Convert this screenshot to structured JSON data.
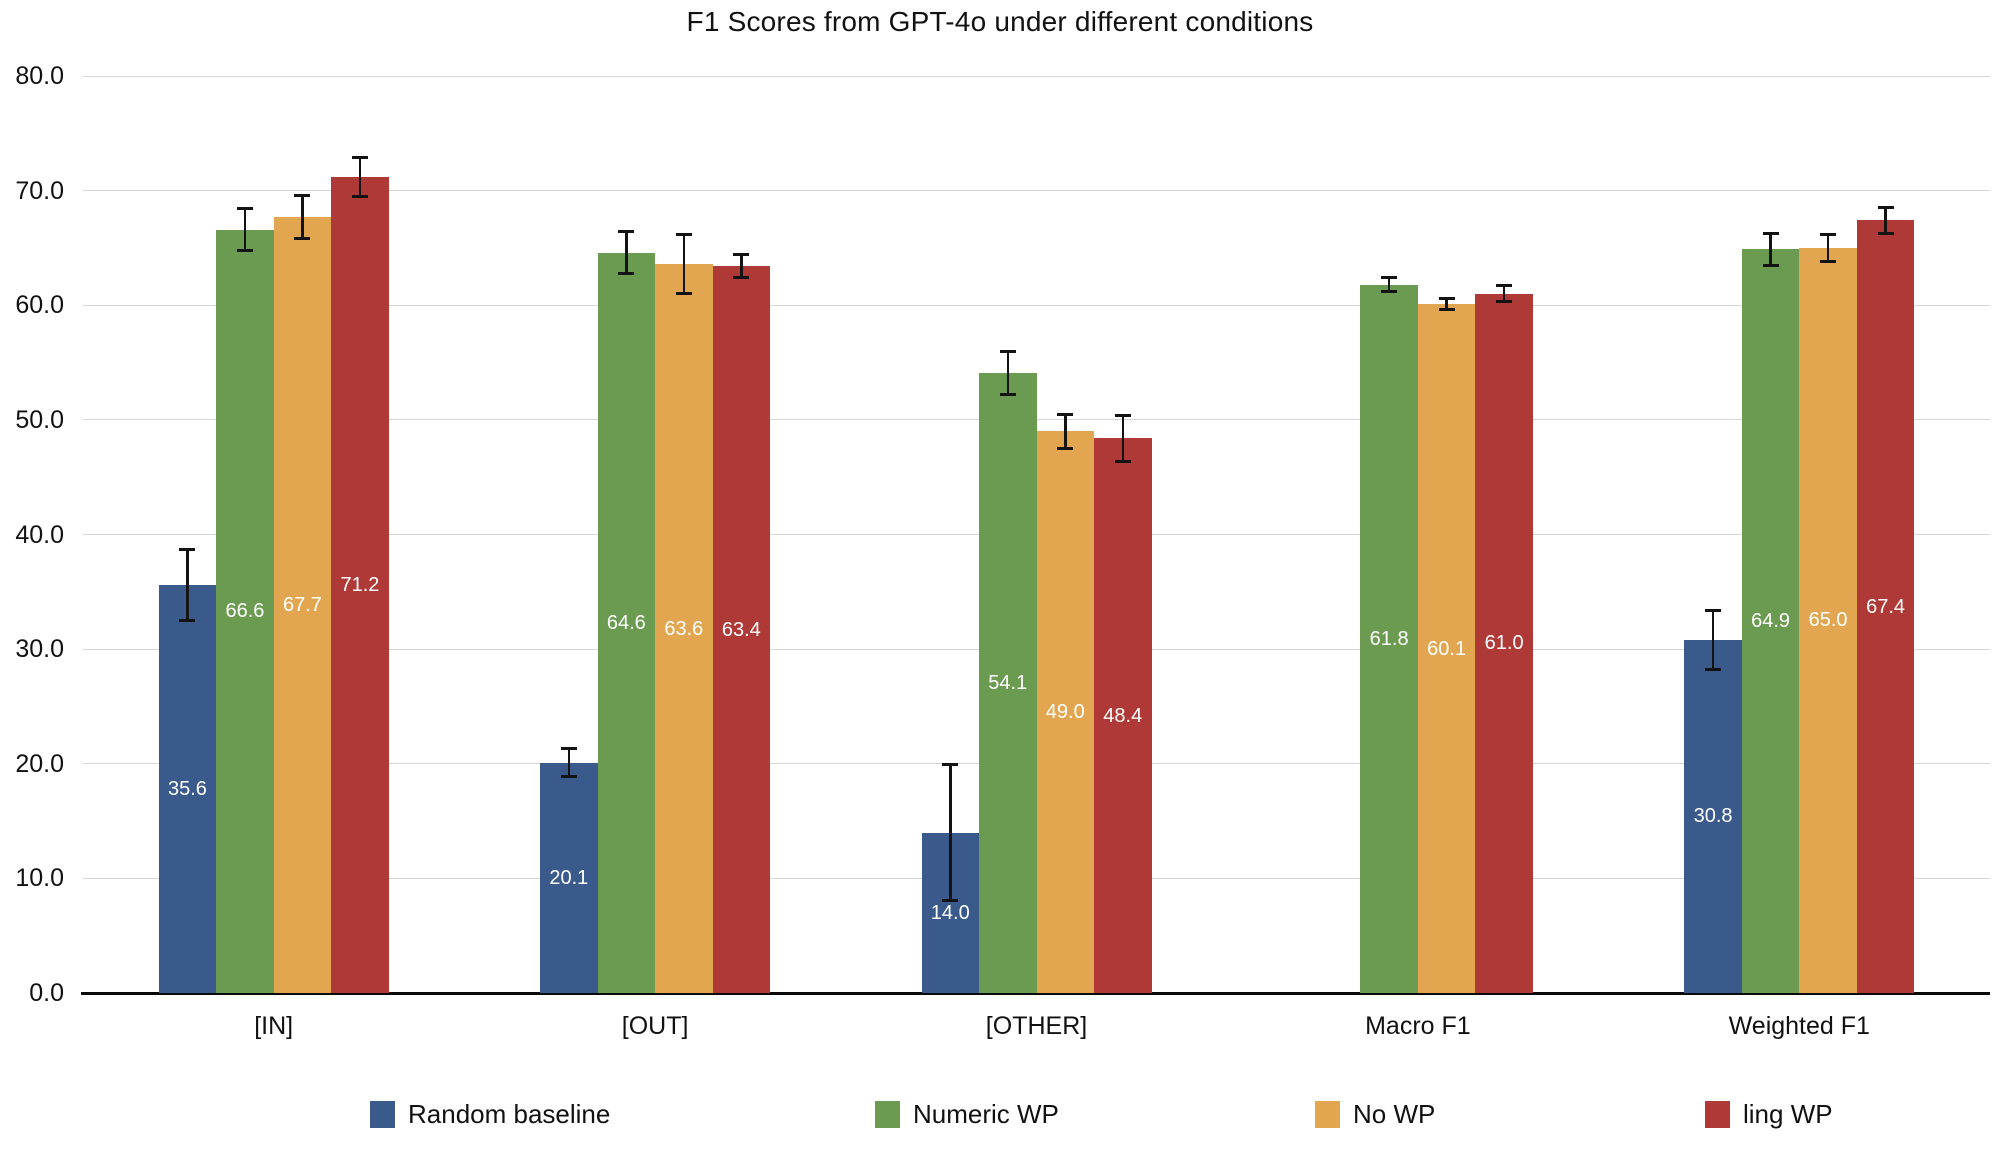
{
  "chart_data": {
    "type": "bar",
    "title": "F1 Scores from GPT-4o under different conditions",
    "categories": [
      "[IN]",
      "[OUT]",
      "[OTHER]",
      "Macro F1",
      "Weighted F1"
    ],
    "series": [
      {
        "name": "Random baseline",
        "color": "#3A5A8C",
        "values": [
          35.6,
          20.1,
          14.0,
          null,
          30.8
        ],
        "errors": [
          3.1,
          1.2,
          5.9,
          null,
          2.6
        ]
      },
      {
        "name": "Numeric WP",
        "color": "#6B9B50",
        "values": [
          66.6,
          64.6,
          54.1,
          61.8,
          64.9
        ],
        "errors": [
          1.8,
          1.8,
          1.9,
          0.6,
          1.4
        ]
      },
      {
        "name": "No WP",
        "color": "#E1A64F",
        "values": [
          67.7,
          63.6,
          49.0,
          60.1,
          65.0
        ],
        "errors": [
          1.9,
          2.6,
          1.5,
          0.5,
          1.2
        ]
      },
      {
        "name": "ling WP",
        "color": "#AE3936",
        "values": [
          71.2,
          63.4,
          48.4,
          61.0,
          67.4
        ],
        "errors": [
          1.7,
          1.0,
          2.0,
          0.7,
          1.1
        ]
      }
    ],
    "bar_value_labels": [
      [
        "35.6",
        "20.1",
        "14.0",
        null,
        "30.8"
      ],
      [
        "66.6",
        "64.6",
        "54.1",
        "61.8",
        "64.9"
      ],
      [
        "67.7",
        "63.6",
        "49.0",
        "60.1",
        "65.0"
      ],
      [
        "71.2",
        "63.4",
        "48.4",
        "61.0",
        "67.4"
      ]
    ],
    "y_ticks": [
      "80.0",
      "70.0",
      "60.0",
      "50.0",
      "40.0",
      "30.0",
      "20.0",
      "10.0",
      "0.0"
    ],
    "ylim": [
      0,
      80
    ],
    "grid": true,
    "error_bars": true,
    "legend_position": "bottom",
    "xlabel": "",
    "ylabel": ""
  }
}
